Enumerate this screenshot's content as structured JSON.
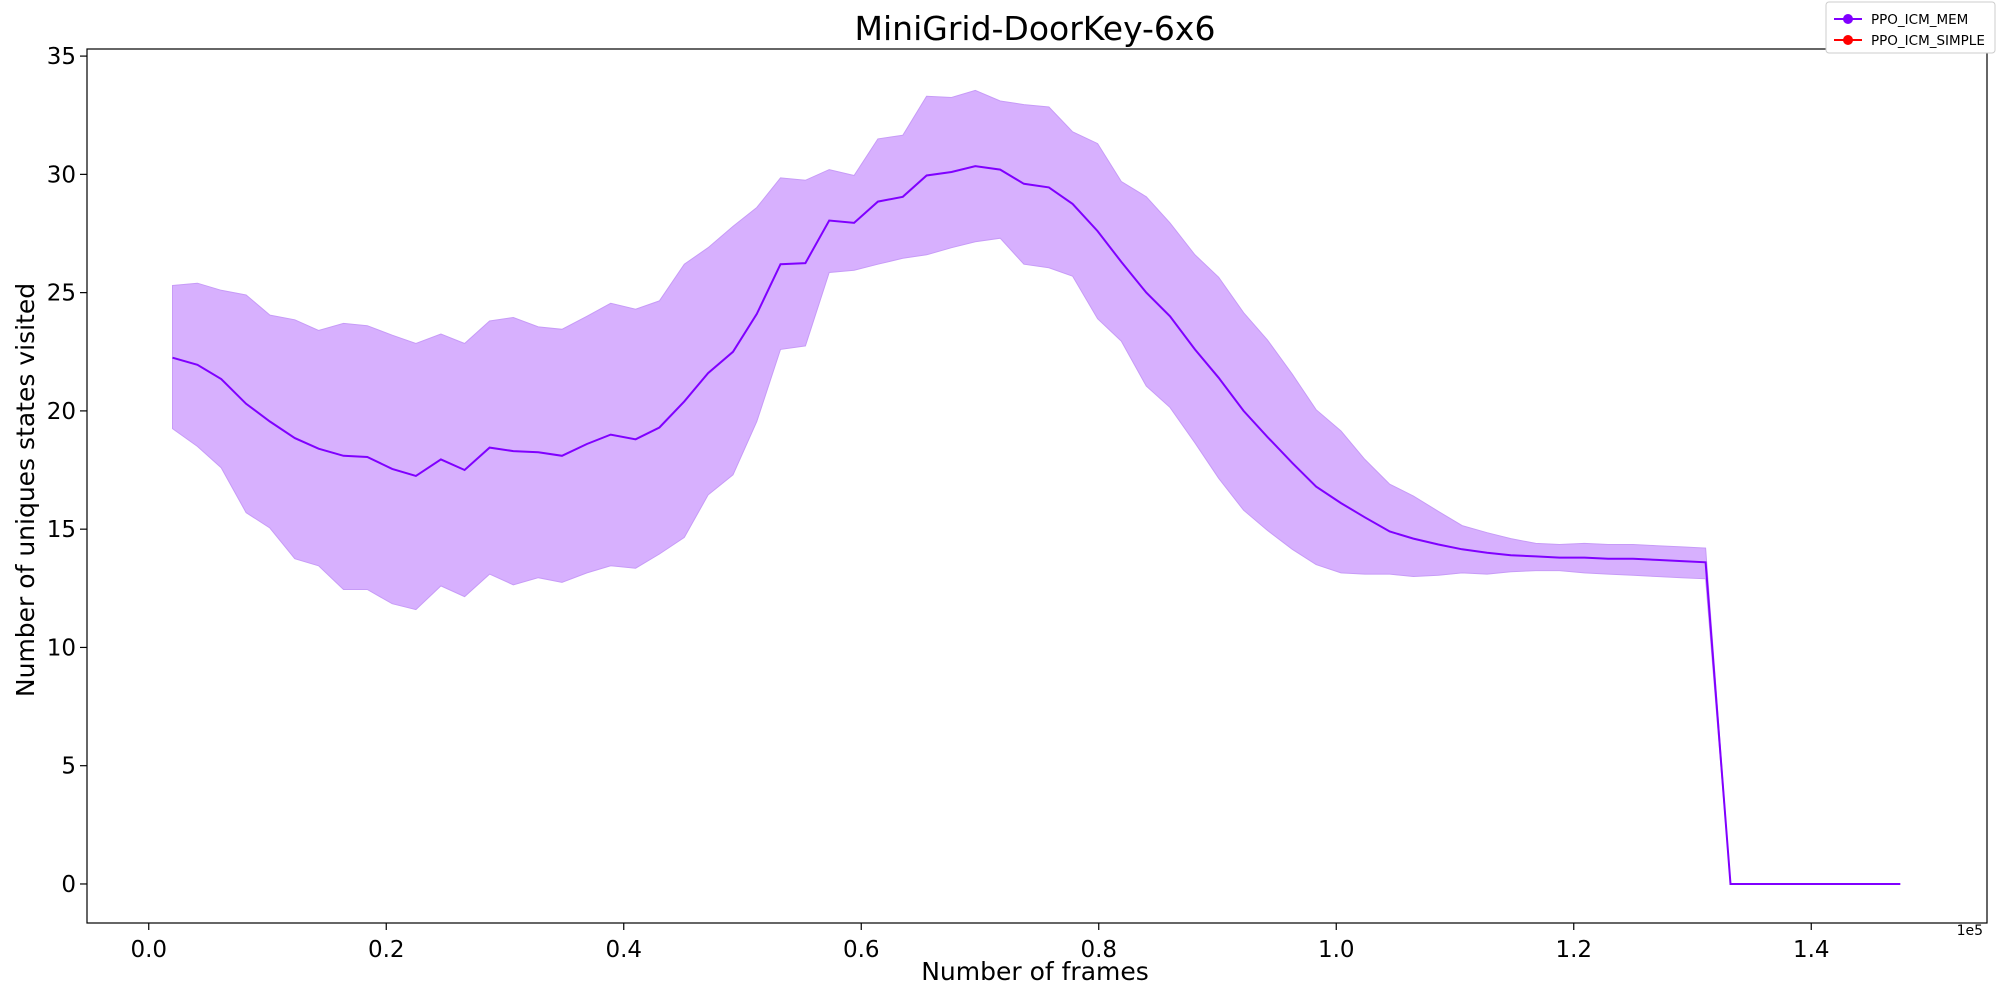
{
  "chart_data": {
    "type": "line",
    "title": "MiniGrid-DoorKey-6x6",
    "xlabel": "Number of frames",
    "ylabel": "Number of uniques states visited",
    "x_offset_label": "1e5",
    "xlim": [
      -0.052,
      1.548
    ],
    "ylim": [
      -1.65,
      35.3
    ],
    "xticks": [
      0.0,
      0.2,
      0.4,
      0.6,
      0.8,
      1.0,
      1.2,
      1.4
    ],
    "xtick_labels": [
      "0.0",
      "0.2",
      "0.4",
      "0.6",
      "0.8",
      "1.0",
      "1.2",
      "1.4"
    ],
    "yticks": [
      0,
      5,
      10,
      15,
      20,
      25,
      30,
      35
    ],
    "ytick_labels": [
      "0",
      "5",
      "10",
      "15",
      "20",
      "25",
      "30",
      "35"
    ],
    "grid": false,
    "legend_position": "top-right",
    "series": [
      {
        "name": "PPO_ICM_MEM",
        "color": "#8000ff",
        "band_color": "#d7b0fe",
        "x": [
          0.02,
          0.041,
          0.061,
          0.082,
          0.102,
          0.123,
          0.143,
          0.164,
          0.184,
          0.205,
          0.225,
          0.246,
          0.266,
          0.287,
          0.307,
          0.328,
          0.348,
          0.369,
          0.389,
          0.41,
          0.43,
          0.451,
          0.471,
          0.492,
          0.512,
          0.532,
          0.553,
          0.573,
          0.594,
          0.614,
          0.635,
          0.655,
          0.676,
          0.696,
          0.717,
          0.737,
          0.758,
          0.778,
          0.799,
          0.819,
          0.84,
          0.86,
          0.881,
          0.901,
          0.922,
          0.942,
          0.963,
          0.983,
          1.004,
          1.024,
          1.045,
          1.065,
          1.086,
          1.106,
          1.127,
          1.147,
          1.168,
          1.188,
          1.209,
          1.229,
          1.25,
          1.27,
          1.291,
          1.311,
          1.332,
          1.475
        ],
        "values": [
          22.25,
          21.95,
          21.35,
          20.3,
          19.55,
          18.85,
          18.4,
          18.1,
          18.05,
          17.55,
          17.25,
          17.95,
          17.5,
          18.45,
          18.3,
          18.25,
          18.1,
          18.6,
          19.0,
          18.8,
          19.3,
          20.4,
          21.6,
          22.5,
          24.1,
          26.2,
          26.25,
          28.05,
          27.95,
          28.85,
          29.05,
          29.95,
          30.1,
          30.35,
          30.2,
          29.6,
          29.45,
          28.75,
          27.6,
          26.3,
          25.0,
          24.0,
          22.6,
          21.4,
          20.0,
          18.9,
          17.8,
          16.8,
          16.1,
          15.5,
          14.9,
          14.6,
          14.35,
          14.15,
          14.0,
          13.9,
          13.85,
          13.8,
          13.8,
          13.75,
          13.75,
          13.7,
          13.65,
          13.6,
          0.0,
          0.0
        ],
        "upper": [
          25.3,
          25.4,
          25.1,
          24.9,
          24.05,
          23.85,
          23.4,
          23.7,
          23.6,
          23.2,
          22.85,
          23.25,
          22.85,
          23.8,
          23.95,
          23.55,
          23.45,
          24.0,
          24.55,
          24.3,
          24.65,
          26.2,
          26.9,
          27.8,
          28.6,
          29.85,
          29.75,
          30.2,
          29.95,
          31.5,
          31.65,
          33.3,
          33.25,
          33.55,
          33.1,
          32.95,
          32.85,
          31.8,
          31.3,
          29.7,
          29.05,
          27.95,
          26.6,
          25.65,
          24.15,
          23.0,
          21.55,
          20.05,
          19.15,
          17.95,
          16.9,
          16.4,
          15.75,
          15.15,
          14.85,
          14.6,
          14.4,
          14.35,
          14.4,
          14.35,
          14.35,
          14.3,
          14.25,
          14.2,
          0.0,
          0.0
        ],
        "lower": [
          19.25,
          18.5,
          17.6,
          15.7,
          15.05,
          13.75,
          13.45,
          12.45,
          12.45,
          11.85,
          11.6,
          12.6,
          12.15,
          13.1,
          12.65,
          12.95,
          12.75,
          13.15,
          13.45,
          13.35,
          13.95,
          14.65,
          16.45,
          17.3,
          19.55,
          22.6,
          22.75,
          25.85,
          25.95,
          26.2,
          26.45,
          26.6,
          26.9,
          27.15,
          27.3,
          26.2,
          26.05,
          25.7,
          23.9,
          22.95,
          21.05,
          20.15,
          18.65,
          17.15,
          15.8,
          14.95,
          14.15,
          13.5,
          13.15,
          13.1,
          13.1,
          13.0,
          13.05,
          13.15,
          13.1,
          13.2,
          13.25,
          13.25,
          13.15,
          13.1,
          13.05,
          13.0,
          12.95,
          12.9,
          0.0,
          0.0
        ]
      },
      {
        "name": "PPO_ICM_SIMPLE",
        "color": "#ff0000",
        "x": [],
        "values": []
      }
    ]
  }
}
